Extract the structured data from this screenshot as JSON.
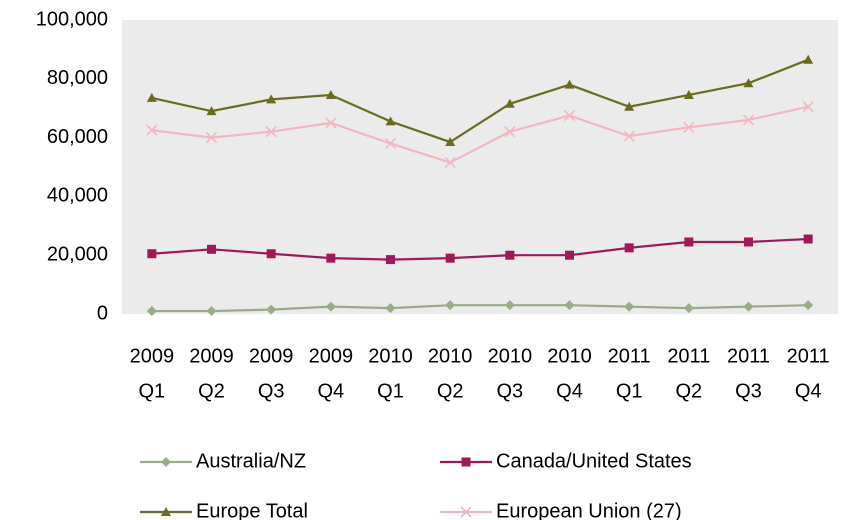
{
  "chart_data": {
    "type": "line",
    "categories": [
      [
        "2009",
        "Q1"
      ],
      [
        "2009",
        "Q2"
      ],
      [
        "2009",
        "Q3"
      ],
      [
        "2009",
        "Q4"
      ],
      [
        "2010",
        "Q1"
      ],
      [
        "2010",
        "Q2"
      ],
      [
        "2010",
        "Q3"
      ],
      [
        "2010",
        "Q4"
      ],
      [
        "2011",
        "Q1"
      ],
      [
        "2011",
        "Q2"
      ],
      [
        "2011",
        "Q3"
      ],
      [
        "2011",
        "Q4"
      ]
    ],
    "series": [
      {
        "name": "Australia/NZ",
        "color": "#9aab88",
        "marker": "diamond",
        "values": [
          1000,
          1000,
          1500,
          2500,
          2000,
          3000,
          3000,
          3000,
          2500,
          2000,
          2500,
          3000
        ]
      },
      {
        "name": "Canada/United States",
        "color": "#a0185a",
        "marker": "square",
        "values": [
          20500,
          22000,
          20500,
          19000,
          18500,
          19000,
          20000,
          20000,
          22500,
          24500,
          24500,
          25500
        ]
      },
      {
        "name": "Europe Total",
        "color": "#6b6b1f",
        "marker": "triangle",
        "values": [
          73500,
          69000,
          73000,
          74500,
          65500,
          58500,
          71500,
          78000,
          70500,
          74500,
          78500,
          86500
        ]
      },
      {
        "name": "European Union (27)",
        "color": "#f4b5c0",
        "marker": "x",
        "values": [
          62500,
          60000,
          62000,
          65000,
          58000,
          51500,
          62000,
          67500,
          60500,
          63500,
          66000,
          70500
        ]
      }
    ],
    "ylim": [
      0,
      100000
    ],
    "yticks": [
      0,
      {
        "value": 20000,
        "label": "20,000"
      },
      {
        "value": 40000,
        "label": "40,000"
      },
      {
        "value": 60000,
        "label": "60,000"
      },
      {
        "value": 80000,
        "label": "80,000"
      },
      {
        "value": 100000,
        "label": "100,000"
      }
    ],
    "grid": false,
    "legend": "bottom",
    "background": "#ebebeb"
  }
}
